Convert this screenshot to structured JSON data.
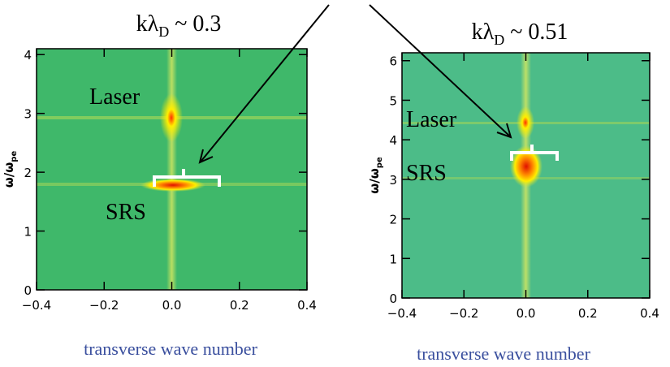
{
  "chart_data": [
    {
      "type": "spectrogram",
      "title_parts": [
        "kλ",
        "D",
        " ~ 0.3"
      ],
      "xlabel": "transverse wave number",
      "ylabel_parts": [
        "ω/ω",
        "pe"
      ],
      "xlim": [
        -0.4,
        0.4
      ],
      "ylim": [
        0,
        4.1
      ],
      "xticks": [
        {
          "value": -0.4,
          "label": "−0.4"
        },
        {
          "value": -0.2,
          "label": "−0.2"
        },
        {
          "value": 0,
          "label": "0.0"
        },
        0.2,
        0.4
      ],
      "yticks": [
        0,
        1,
        2,
        3,
        4
      ],
      "annotations": [
        "Laser",
        "SRS"
      ]
    },
    {
      "type": "spectrogram",
      "title_parts": [
        "kλ",
        "D",
        " ~ 0.51"
      ],
      "xlabel": "transverse wave number",
      "ylabel_parts": [
        "ω/ω",
        "pe"
      ],
      "xlim": [
        -0.4,
        0.4
      ],
      "ylim": [
        0,
        6.2
      ],
      "xticks": [
        {
          "value": -0.4,
          "label": "−0.4"
        },
        {
          "value": -0.2,
          "label": "−0.2"
        },
        {
          "value": 0,
          "label": "0.0"
        },
        0.2,
        0.4
      ],
      "yticks": [
        0,
        1,
        2,
        3,
        4,
        5,
        6
      ],
      "annotations": [
        "Laser",
        "SRS"
      ]
    }
  ]
}
